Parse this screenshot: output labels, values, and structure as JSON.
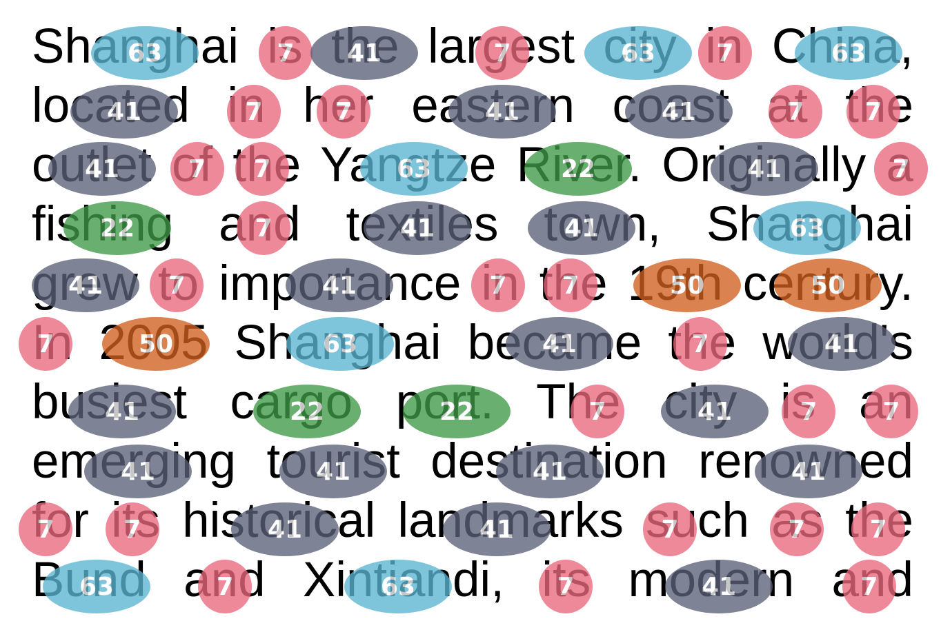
{
  "colors": {
    "c63": "#5ab4d0",
    "c7": "#e8687d",
    "c41": "#5a6178",
    "c22": "#3f9a48",
    "c50": "#d06020"
  },
  "lines": [
    "Shanghai is the largest city in China,",
    "located in her eastern coast at the",
    "outlet of the Yangtze River. Originally a",
    "fishing and textiles town, Shanghai",
    "grew to importance in the 19th century.",
    "In 2005 Shanghai became the world's",
    "busiest cargo port. The city is an",
    "emerging tourist destination renowned",
    "for its historical landmarks such as the",
    "Bund and Xintiandi, its modern and"
  ],
  "badges": [
    [
      {
        "v": "63",
        "c": "c63"
      },
      {
        "v": "7",
        "c": "c7"
      },
      {
        "v": "7",
        "c": "c7"
      },
      {
        "v": "41",
        "c": "c41"
      },
      {
        "v": "63",
        "c": "c63"
      },
      {
        "v": "7",
        "c": "c7"
      },
      {
        "v": "63",
        "c": "c63"
      }
    ],
    [
      {
        "v": "41",
        "c": "c41"
      },
      {
        "v": "7",
        "c": "c7"
      },
      {
        "v": "7",
        "c": "c7"
      },
      {
        "v": "41",
        "c": "c41"
      },
      {
        "v": "41",
        "c": "c41"
      },
      {
        "v": "7",
        "c": "c7"
      },
      {
        "v": "7",
        "c": "c7"
      }
    ],
    [
      {
        "v": "41",
        "c": "c41"
      },
      {
        "v": "7",
        "c": "c7"
      },
      {
        "v": "7",
        "c": "c7"
      },
      {
        "v": "63",
        "c": "c63"
      },
      {
        "v": "22",
        "c": "c22"
      },
      {
        "v": "41",
        "c": "c41"
      },
      {
        "v": "7",
        "c": "c7"
      }
    ],
    [
      {
        "v": "22",
        "c": "c22"
      },
      {
        "v": "7",
        "c": "c7"
      },
      {
        "v": "41",
        "c": "c41"
      },
      {
        "v": "41",
        "c": "c41"
      },
      {
        "v": "63",
        "c": "c63"
      }
    ],
    [
      {
        "v": "41",
        "c": "c41"
      },
      {
        "v": "7",
        "c": "c7"
      },
      {
        "v": "41",
        "c": "c41"
      },
      {
        "v": "7",
        "c": "c7"
      },
      {
        "v": "7",
        "c": "c7"
      },
      {
        "v": "50",
        "c": "c50"
      },
      {
        "v": "50",
        "c": "c50"
      }
    ],
    [
      {
        "v": "7",
        "c": "c7"
      },
      {
        "v": "50",
        "c": "c50"
      },
      {
        "v": "63",
        "c": "c63"
      },
      {
        "v": "41",
        "c": "c41"
      },
      {
        "v": "7",
        "c": "c7"
      },
      {
        "v": "41",
        "c": "c41"
      }
    ],
    [
      {
        "v": "41",
        "c": "c41"
      },
      {
        "v": "22",
        "c": "c22"
      },
      {
        "v": "22",
        "c": "c22"
      },
      {
        "v": "7",
        "c": "c7"
      },
      {
        "v": "41",
        "c": "c41"
      },
      {
        "v": "7",
        "c": "c7"
      },
      {
        "v": "7",
        "c": "c7"
      }
    ],
    [
      {
        "v": "41",
        "c": "c41"
      },
      {
        "v": "41",
        "c": "c41"
      },
      {
        "v": "41",
        "c": "c41"
      },
      {
        "v": "41",
        "c": "c41"
      }
    ],
    [
      {
        "v": "7",
        "c": "c7"
      },
      {
        "v": "7",
        "c": "c7"
      },
      {
        "v": "41",
        "c": "c41"
      },
      {
        "v": "41",
        "c": "c41"
      },
      {
        "v": "7",
        "c": "c7"
      },
      {
        "v": "7",
        "c": "c7"
      },
      {
        "v": "7",
        "c": "c7"
      }
    ],
    [
      {
        "v": "63",
        "c": "c63"
      },
      {
        "v": "7",
        "c": "c7"
      },
      {
        "v": "63",
        "c": "c63"
      },
      {
        "v": "7",
        "c": "c7"
      },
      {
        "v": "41",
        "c": "c41"
      },
      {
        "v": "7",
        "c": "c7"
      }
    ]
  ]
}
